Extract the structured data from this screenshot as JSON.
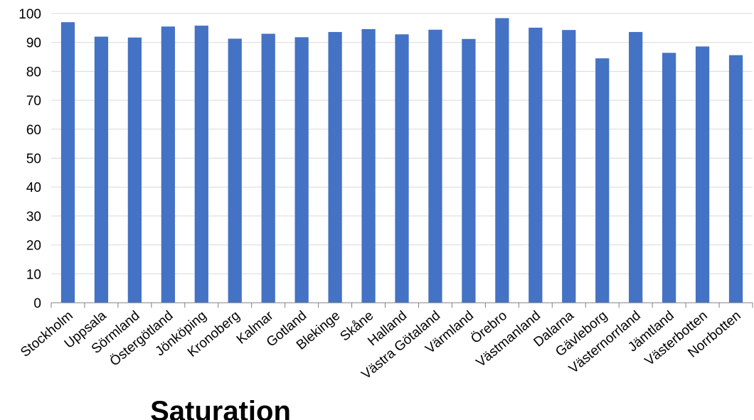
{
  "chart_data": {
    "type": "bar",
    "title": "Saturation",
    "xlabel": "",
    "ylabel": "",
    "ylim": [
      0,
      100
    ],
    "yticks": [
      "0",
      "10",
      "20",
      "30",
      "40",
      "50",
      "60",
      "70",
      "80",
      "90",
      "100"
    ],
    "grid": true,
    "legend": "none",
    "bar_color": "#4472c4",
    "categories": [
      "Stockholm",
      "Uppsala",
      "Sörmland",
      "Östergötland",
      "Jönköping",
      "Kronoberg",
      "Kalmar",
      "Gotland",
      "Blekinge",
      "Skåne",
      "Halland",
      "Västra Götaland",
      "Värmland",
      "Örebro",
      "Västmanland",
      "Dalarna",
      "Gävleborg",
      "Västernorrland",
      "Jämtland",
      "Västerbotten",
      "Norrbotten"
    ],
    "values": [
      97.0,
      92.0,
      91.7,
      95.5,
      95.8,
      91.3,
      93.0,
      91.8,
      93.6,
      94.6,
      92.8,
      94.4,
      91.2,
      98.4,
      95.1,
      94.3,
      84.5,
      93.6,
      86.4,
      88.6,
      85.6
    ]
  }
}
